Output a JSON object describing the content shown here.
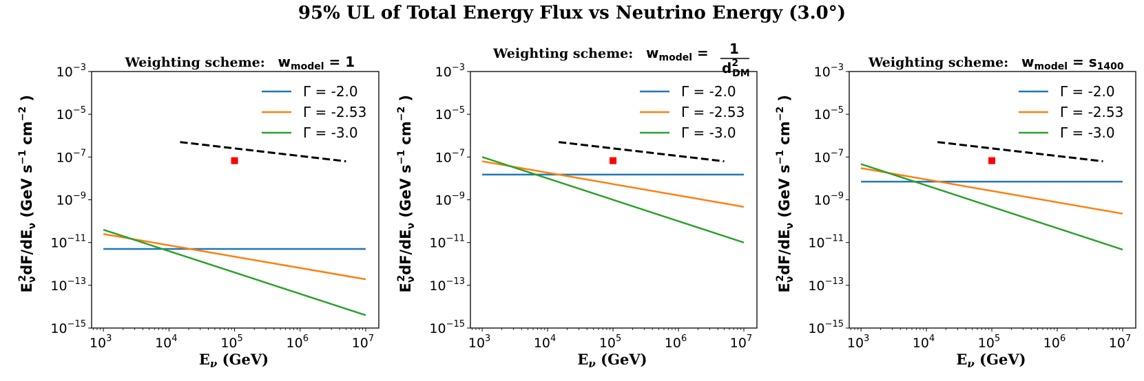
{
  "suptitle": "95% UL of Total Energy Flux vs Neutrino Energy (3.0°)",
  "chart_data": [
    {
      "type": "line",
      "title": "Weighting scheme:  w_model = 1",
      "title_prefix": "Weighting scheme:",
      "title_math": {
        "lhs": "w",
        "lhs_sub": "model",
        "eq": "=",
        "rhs": "1",
        "rhs_sub": "",
        "fraction": false
      },
      "xlabel": "E_ν (GeV)",
      "ylabel": "E_ν² dF/dE_ν (GeV s⁻¹ cm⁻²)",
      "xscale": "log",
      "yscale": "log",
      "xlim_exp": [
        2.82,
        7.2
      ],
      "ylim_exp": [
        -15,
        -3
      ],
      "xticks": [
        {
          "exp": 3,
          "base": "10",
          "sup": "3"
        },
        {
          "exp": 4,
          "base": "10",
          "sup": "4"
        },
        {
          "exp": 5,
          "base": "10",
          "sup": "5"
        },
        {
          "exp": 6,
          "base": "10",
          "sup": "6"
        },
        {
          "exp": 7,
          "base": "10",
          "sup": "7"
        }
      ],
      "yticks": [
        {
          "exp": -3,
          "base": "10",
          "sup": "−3"
        },
        {
          "exp": -5,
          "base": "10",
          "sup": "−5"
        },
        {
          "exp": -7,
          "base": "10",
          "sup": "−7"
        },
        {
          "exp": -9,
          "base": "10",
          "sup": "−9"
        },
        {
          "exp": -11,
          "base": "10",
          "sup": "−11"
        },
        {
          "exp": -13,
          "base": "10",
          "sup": "−13"
        },
        {
          "exp": -15,
          "base": "10",
          "sup": "−15"
        }
      ],
      "grid": false,
      "legend": "top-right",
      "series": [
        {
          "name": "Γ = -2.0",
          "color": "#1f77b4",
          "x_exp": [
            3,
            7
          ],
          "y_exp": [
            -11.3,
            -11.3
          ]
        },
        {
          "name": "Γ = -2.53",
          "color": "#ff7f0e",
          "x_exp": [
            3,
            7
          ],
          "y_exp": [
            -10.6,
            -12.72
          ]
        },
        {
          "name": "Γ = -3.0",
          "color": "#2ca02c",
          "x_exp": [
            3,
            7
          ],
          "y_exp": [
            -10.4,
            -14.4
          ]
        }
      ],
      "reference_line": {
        "style": "dashed",
        "color": "#000000",
        "x_exp": [
          4.17,
          6.7
        ],
        "y_exp": [
          -6.3,
          -7.2
        ]
      },
      "marker": {
        "shape": "square",
        "color": "#ff0000",
        "x_exp": 5.0,
        "y_exp": -7.17
      }
    },
    {
      "type": "line",
      "title": "Weighting scheme:  w_model = 1 / d_DM²",
      "title_prefix": "Weighting scheme:",
      "title_math": {
        "lhs": "w",
        "lhs_sub": "model",
        "eq": "=",
        "rhs": "1",
        "rhs_sub": "",
        "fraction": true,
        "den": "d",
        "den_sup": "2",
        "den_sub": "DM"
      },
      "xlabel": "E_ν (GeV)",
      "ylabel": "E_ν² dF/dE_ν (GeV s⁻¹ cm⁻²)",
      "xscale": "log",
      "yscale": "log",
      "xlim_exp": [
        2.82,
        7.2
      ],
      "ylim_exp": [
        -15,
        -3
      ],
      "xticks": [
        {
          "exp": 3,
          "base": "10",
          "sup": "3"
        },
        {
          "exp": 4,
          "base": "10",
          "sup": "4"
        },
        {
          "exp": 5,
          "base": "10",
          "sup": "5"
        },
        {
          "exp": 6,
          "base": "10",
          "sup": "6"
        },
        {
          "exp": 7,
          "base": "10",
          "sup": "7"
        }
      ],
      "yticks": [
        {
          "exp": -3,
          "base": "10",
          "sup": "−3"
        },
        {
          "exp": -5,
          "base": "10",
          "sup": "−5"
        },
        {
          "exp": -7,
          "base": "10",
          "sup": "−7"
        },
        {
          "exp": -9,
          "base": "10",
          "sup": "−9"
        },
        {
          "exp": -11,
          "base": "10",
          "sup": "−11"
        },
        {
          "exp": -13,
          "base": "10",
          "sup": "−13"
        },
        {
          "exp": -15,
          "base": "10",
          "sup": "−15"
        }
      ],
      "grid": false,
      "legend": "top-right",
      "series": [
        {
          "name": "Γ = -2.0",
          "color": "#1f77b4",
          "x_exp": [
            3,
            7
          ],
          "y_exp": [
            -7.82,
            -7.82
          ]
        },
        {
          "name": "Γ = -2.53",
          "color": "#ff7f0e",
          "x_exp": [
            3,
            7
          ],
          "y_exp": [
            -7.2,
            -9.33
          ]
        },
        {
          "name": "Γ = -3.0",
          "color": "#2ca02c",
          "x_exp": [
            3,
            7
          ],
          "y_exp": [
            -7.0,
            -11.0
          ]
        }
      ],
      "reference_line": {
        "style": "dashed",
        "color": "#000000",
        "x_exp": [
          4.17,
          6.7
        ],
        "y_exp": [
          -6.3,
          -7.2
        ]
      },
      "marker": {
        "shape": "square",
        "color": "#ff0000",
        "x_exp": 5.0,
        "y_exp": -7.17
      }
    },
    {
      "type": "line",
      "title": "Weighting scheme:  w_model = s_1400",
      "title_prefix": "Weighting scheme:",
      "title_math": {
        "lhs": "w",
        "lhs_sub": "model",
        "eq": "=",
        "rhs": "s",
        "rhs_sub": "1400",
        "fraction": false
      },
      "xlabel": "E_ν (GeV)",
      "ylabel": "E_ν² dF/dE_ν (GeV s⁻¹ cm⁻²)",
      "xscale": "log",
      "yscale": "log",
      "xlim_exp": [
        2.82,
        7.2
      ],
      "ylim_exp": [
        -15,
        -3
      ],
      "xticks": [
        {
          "exp": 3,
          "base": "10",
          "sup": "3"
        },
        {
          "exp": 4,
          "base": "10",
          "sup": "4"
        },
        {
          "exp": 5,
          "base": "10",
          "sup": "5"
        },
        {
          "exp": 6,
          "base": "10",
          "sup": "6"
        },
        {
          "exp": 7,
          "base": "10",
          "sup": "7"
        }
      ],
      "yticks": [
        {
          "exp": -3,
          "base": "10",
          "sup": "−3"
        },
        {
          "exp": -5,
          "base": "10",
          "sup": "−5"
        },
        {
          "exp": -7,
          "base": "10",
          "sup": "−7"
        },
        {
          "exp": -9,
          "base": "10",
          "sup": "−9"
        },
        {
          "exp": -11,
          "base": "10",
          "sup": "−11"
        },
        {
          "exp": -13,
          "base": "10",
          "sup": "−13"
        },
        {
          "exp": -15,
          "base": "10",
          "sup": "−15"
        }
      ],
      "grid": false,
      "legend": "top-right",
      "series": [
        {
          "name": "Γ = -2.0",
          "color": "#1f77b4",
          "x_exp": [
            3,
            7
          ],
          "y_exp": [
            -8.15,
            -8.15
          ]
        },
        {
          "name": "Γ = -2.53",
          "color": "#ff7f0e",
          "x_exp": [
            3,
            7
          ],
          "y_exp": [
            -7.52,
            -9.65
          ]
        },
        {
          "name": "Γ = -3.0",
          "color": "#2ca02c",
          "x_exp": [
            3,
            7
          ],
          "y_exp": [
            -7.33,
            -11.33
          ]
        }
      ],
      "reference_line": {
        "style": "dashed",
        "color": "#000000",
        "x_exp": [
          4.17,
          6.7
        ],
        "y_exp": [
          -6.3,
          -7.2
        ]
      },
      "marker": {
        "shape": "square",
        "color": "#ff0000",
        "x_exp": 5.0,
        "y_exp": -7.17
      }
    }
  ]
}
